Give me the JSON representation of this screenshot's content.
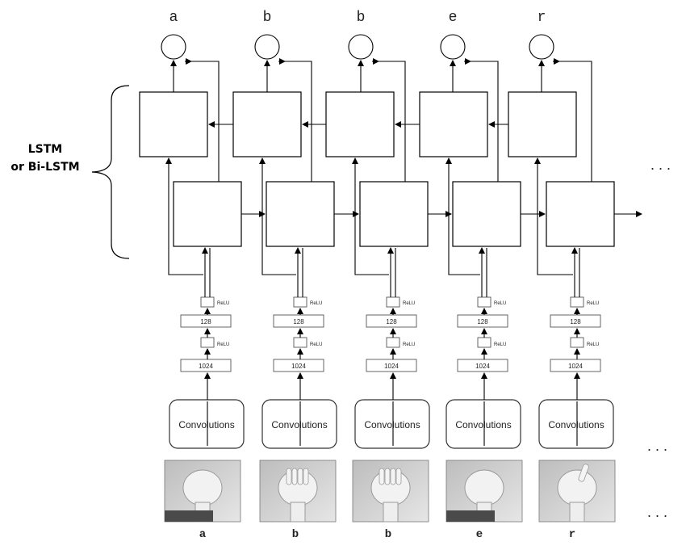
{
  "lstm_label_line1": "LSTM",
  "lstm_label_line2": "or Bi-LSTM",
  "ellipsis": ". . .",
  "relu_label": "ReLU",
  "dense_sizes": {
    "first": "1024",
    "second": "128"
  },
  "conv_label": "Convolutions",
  "columns": [
    {
      "output_letter": "a",
      "input_letter": "a"
    },
    {
      "output_letter": "b",
      "input_letter": "b"
    },
    {
      "output_letter": "b",
      "input_letter": "b"
    },
    {
      "output_letter": "e",
      "input_letter": "e"
    },
    {
      "output_letter": "r",
      "input_letter": "r"
    }
  ],
  "colors": {
    "stroke": "#000000",
    "hand_bg_light": "#d9d9d9",
    "hand_bg_dark": "#4a4a4a"
  },
  "hand_images": [
    "hand-sign-a",
    "hand-sign-b",
    "hand-sign-b",
    "hand-sign-e",
    "hand-sign-r"
  ]
}
